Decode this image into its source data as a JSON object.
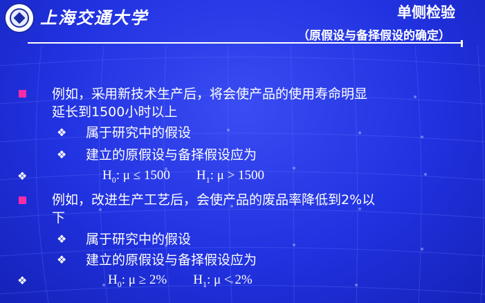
{
  "header": {
    "university": "上海交通大学",
    "title": "单侧检验",
    "subtitle": "（原假设与备择假设的确定）"
  },
  "examples": [
    {
      "line1": "例如，采用新技术生产后，将会使产品的使用寿命明显",
      "line2": "延长到1500小时以上",
      "sub1": "属于研究中的假设",
      "sub2": "建立的原假设与备择假设应为",
      "h0_rel": ": μ ≤ 1500",
      "h1_rel": ": μ > 1500"
    },
    {
      "line1": "例如，改进生产工艺后，会使产品的废品率降低到2%以",
      "line2": "下",
      "sub1": "属于研究中的假设",
      "sub2": "建立的原假设与备择假设应为",
      "h0_rel": ": μ ≥ 2%",
      "h1_rel": ": μ < 2%"
    }
  ],
  "symbols": {
    "h": "H",
    "sub0": "0",
    "sub1": "1",
    "diamond": "❖"
  },
  "colors": {
    "background": "#2132e0",
    "bullet": "#ff2ba5",
    "text": "#ffffff"
  }
}
